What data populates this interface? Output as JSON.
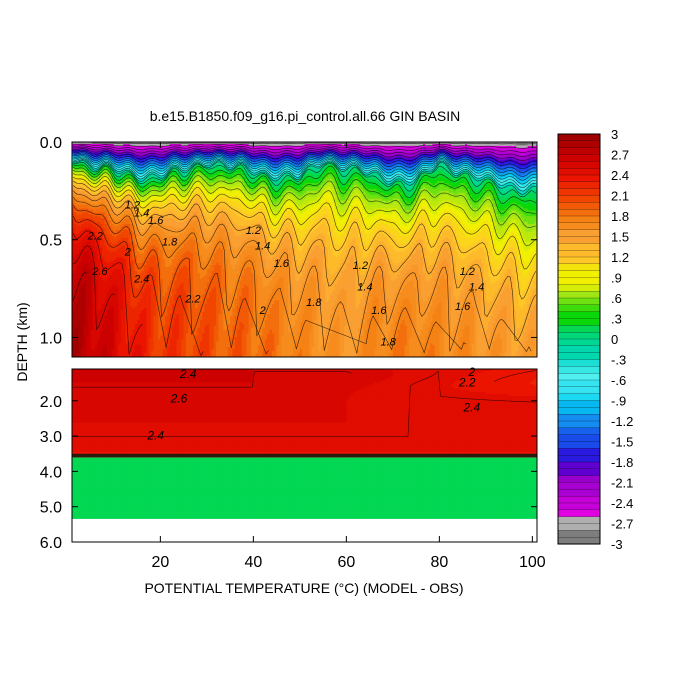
{
  "chart_data": {
    "type": "heatmap",
    "title": "b.e15.B1850.f09_g16.pi_control.all.66 GIN BASIN",
    "xlabel": "POTENTIAL TEMPERATURE (°C) (MODEL - OBS)",
    "ylabel": "DEPTH (km)",
    "x_range": [
      1,
      101
    ],
    "x_ticks": [
      "20",
      "40",
      "60",
      "80",
      "100"
    ],
    "x_tick_values": [
      20,
      40,
      60,
      80,
      100
    ],
    "upper_panel": {
      "y_range": [
        0.0,
        1.1
      ],
      "y_ticks": [
        "0.0",
        "0.5",
        "1.0"
      ],
      "y_tick_values": [
        0.0,
        0.5,
        1.0
      ]
    },
    "lower_panel": {
      "y_range": [
        1.1,
        6.0
      ],
      "y_ticks": [
        "2.0",
        "3.0",
        "4.0",
        "5.0",
        "6.0"
      ],
      "y_tick_values": [
        2.0,
        3.0,
        4.0,
        5.0,
        6.0
      ],
      "bathymetry_depth_km": 3.6,
      "missing_below_km": 5.35
    },
    "colorbar": {
      "min": -3,
      "max": 3,
      "interval": 0.1,
      "labels": [
        "3",
        "2.7",
        "2.4",
        "2.1",
        "1.8",
        "1.5",
        "1.2",
        ".9",
        ".6",
        ".3",
        "0",
        "-.3",
        "-.6",
        "-.9",
        "-1.2",
        "-1.5",
        "-1.8",
        "-2.1",
        "-2.4",
        "-2.7",
        "-3"
      ],
      "label_values": [
        3,
        2.7,
        2.4,
        2.1,
        1.8,
        1.5,
        1.2,
        0.9,
        0.6,
        0.3,
        0,
        -0.3,
        -0.6,
        -0.9,
        -1.2,
        -1.5,
        -1.8,
        -2.1,
        -2.4,
        -2.7,
        -3
      ]
    },
    "upper_profile": {
      "x": [
        1,
        5,
        10,
        15,
        20,
        25,
        30,
        35,
        40,
        45,
        50,
        55,
        60,
        65,
        70,
        75,
        80,
        85,
        90,
        95,
        101
      ],
      "warm_core": [
        2.9,
        2.8,
        2.6,
        2.4,
        2.2,
        2.2,
        2.1,
        2.0,
        2.0,
        1.9,
        1.8,
        1.7,
        1.6,
        1.8,
        1.9,
        1.9,
        1.8,
        1.8,
        1.7,
        1.7,
        1.6
      ],
      "depth_of_zero_km": [
        0.08,
        0.12,
        0.16,
        0.18,
        0.18,
        0.16,
        0.1,
        0.14,
        0.16,
        0.18,
        0.2,
        0.1,
        0.14,
        0.18,
        0.2,
        0.22,
        0.12,
        0.16,
        0.22,
        0.24,
        0.26
      ]
    },
    "upper_contour_labels": [
      {
        "text": "2.2",
        "x": 6,
        "y": 0.5
      },
      {
        "text": "2.6",
        "x": 7,
        "y": 0.68
      },
      {
        "text": "2.4",
        "x": 16,
        "y": 0.72
      },
      {
        "text": "1.8",
        "x": 22,
        "y": 0.53
      },
      {
        "text": "2",
        "x": 13,
        "y": 0.58
      },
      {
        "text": "2.2",
        "x": 27,
        "y": 0.82
      },
      {
        "text": "2",
        "x": 42,
        "y": 0.88
      },
      {
        "text": "1.8",
        "x": 53,
        "y": 0.84
      },
      {
        "text": "1.2",
        "x": 14,
        "y": 0.34
      },
      {
        "text": "1.4",
        "x": 16,
        "y": 0.38
      },
      {
        "text": "1.6",
        "x": 19,
        "y": 0.42
      },
      {
        "text": "1.2",
        "x": 40,
        "y": 0.47
      },
      {
        "text": "1.4",
        "x": 42,
        "y": 0.55
      },
      {
        "text": "1.6",
        "x": 46,
        "y": 0.64
      },
      {
        "text": "1.2",
        "x": 63,
        "y": 0.65
      },
      {
        "text": "1.4",
        "x": 64,
        "y": 0.76
      },
      {
        "text": "1.6",
        "x": 67,
        "y": 0.88
      },
      {
        "text": "1.8",
        "x": 69,
        "y": 1.04
      },
      {
        "text": "1.2",
        "x": 86,
        "y": 0.68
      },
      {
        "text": "1.4",
        "x": 88,
        "y": 0.76
      },
      {
        "text": "1.6",
        "x": 85,
        "y": 0.86
      }
    ],
    "lower_contour_labels": [
      {
        "text": "2.4",
        "x": 26,
        "y": 1.35
      },
      {
        "text": "2.6",
        "x": 24,
        "y": 2.05
      },
      {
        "text": "2.4",
        "x": 19,
        "y": 3.1
      },
      {
        "text": "2",
        "x": 87,
        "y": 1.3
      },
      {
        "text": "2.2",
        "x": 86,
        "y": 1.6
      },
      {
        "text": "2.4",
        "x": 87,
        "y": 2.3
      }
    ]
  }
}
